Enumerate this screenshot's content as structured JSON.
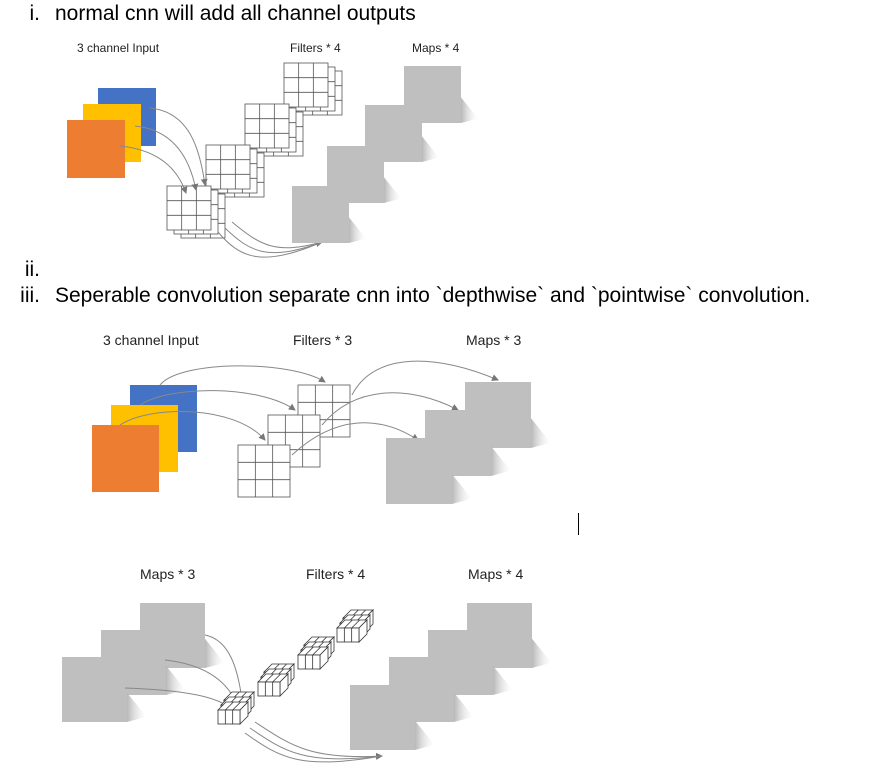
{
  "list": [
    {
      "num": "i.",
      "text": "normal cnn will add all channel outputs"
    },
    {
      "num": "ii.",
      "text": ""
    },
    {
      "num": "iii.",
      "text": "Seperable convolution separate cnn into `depthwise` and `pointwise` convolution."
    }
  ],
  "fig1": {
    "input_label": "3 channel Input",
    "filters_label": "Filters * 4",
    "maps_label": "Maps * 4"
  },
  "fig2": {
    "input_label": "3 channel Input",
    "filters_label": "Filters * 3",
    "maps_label": "Maps * 3"
  },
  "fig3": {
    "maps_in_label": "Maps * 3",
    "filters_label": "Filters * 4",
    "maps_out_label": "Maps * 4"
  },
  "colors": {
    "blue": "#4472c4",
    "yellow": "#ffc000",
    "orange": "#ed7d31",
    "map_gray": "#bfbfbf"
  }
}
